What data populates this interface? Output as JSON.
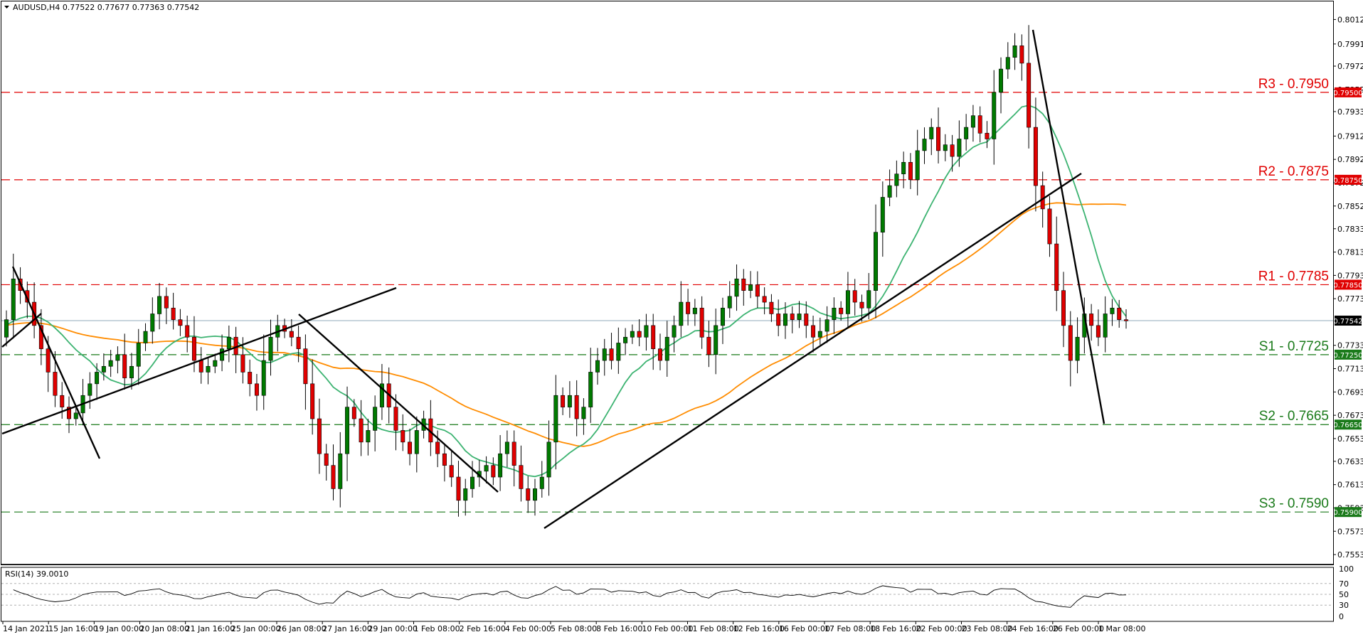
{
  "header": {
    "symbol_info": "AUDUSD,H4  0.77522 0.77677 0.77363 0.77542",
    "rsi_info": "RSI(14) 39.0010"
  },
  "chart_data": {
    "type": "candlestick",
    "symbol": "AUDUSD",
    "timeframe": "H4",
    "ohlc_last": {
      "open": 0.77522,
      "high": 0.77677,
      "low": 0.77363,
      "close": 0.77542
    },
    "ylim": [
      0.7545,
      0.8028
    ],
    "price_ticks": [
      "0.80125",
      "0.79915",
      "0.79725",
      "0.79525",
      "0.79335",
      "0.79125",
      "0.78925",
      "0.78725",
      "0.78525",
      "0.78330",
      "0.78130",
      "0.77930",
      "0.77730",
      "0.77330",
      "0.77130",
      "0.76930",
      "0.76730",
      "0.76530",
      "0.76335",
      "0.76135",
      "0.75935",
      "0.75735",
      "0.75535"
    ],
    "x_labels": [
      "14 Jan 2021",
      "15 Jan 16:00",
      "19 Jan 00:00",
      "20 Jan 08:00",
      "21 Jan 16:00",
      "25 Jan 00:00",
      "26 Jan 08:00",
      "27 Jan 16:00",
      "29 Jan 00:00",
      "1 Feb 08:00",
      "2 Feb 16:00",
      "4 Feb 00:00",
      "5 Feb 08:00",
      "8 Feb 16:00",
      "10 Feb 00:00",
      "11 Feb 08:00",
      "12 Feb 16:00",
      "16 Feb 00:00",
      "17 Feb 08:00",
      "18 Feb 16:00",
      "22 Feb 00:00",
      "23 Feb 08:00",
      "24 Feb 16:00",
      "26 Feb 00:00",
      "1 Mar 08:00"
    ],
    "current_price": "0.77542",
    "levels": [
      {
        "name": "R3",
        "label": "R3 - 0.7950",
        "value": 0.795,
        "badge": "0.79500",
        "color": "#e00000"
      },
      {
        "name": "R2",
        "label": "R2 - 0.7875",
        "value": 0.7875,
        "badge": "0.78750",
        "color": "#e00000"
      },
      {
        "name": "R1",
        "label": "R1 - 0.7785",
        "value": 0.7785,
        "badge": "0.77850",
        "color": "#e00000"
      },
      {
        "name": "S1",
        "label": "S1 - 0.7725",
        "value": 0.7725,
        "badge": "0.77250",
        "color": "#1a7a1a"
      },
      {
        "name": "S2",
        "label": "S2 - 0.7665",
        "value": 0.7665,
        "badge": "0.76650",
        "color": "#1a7a1a"
      },
      {
        "name": "S3",
        "label": "S3 - 0.7590",
        "value": 0.759,
        "badge": "0.75900",
        "color": "#1a7a1a"
      }
    ],
    "closes": [
      0.7755,
      0.779,
      0.778,
      0.777,
      0.775,
      0.773,
      0.771,
      0.769,
      0.768,
      0.767,
      0.7675,
      0.769,
      0.77,
      0.771,
      0.7715,
      0.772,
      0.7725,
      0.7705,
      0.7715,
      0.7735,
      0.7745,
      0.776,
      0.7775,
      0.7765,
      0.7755,
      0.775,
      0.774,
      0.772,
      0.771,
      0.7715,
      0.772,
      0.773,
      0.774,
      0.7725,
      0.771,
      0.77,
      0.769,
      0.772,
      0.774,
      0.775,
      0.7745,
      0.774,
      0.773,
      0.77,
      0.767,
      0.764,
      0.763,
      0.761,
      0.764,
      0.768,
      0.767,
      0.765,
      0.766,
      0.768,
      0.77,
      0.768,
      0.766,
      0.765,
      0.764,
      0.766,
      0.767,
      0.765,
      0.764,
      0.763,
      0.762,
      0.76,
      0.761,
      0.762,
      0.7625,
      0.763,
      0.762,
      0.764,
      0.765,
      0.763,
      0.761,
      0.76,
      0.761,
      0.762,
      0.765,
      0.769,
      0.768,
      0.769,
      0.767,
      0.768,
      0.771,
      0.772,
      0.773,
      0.772,
      0.7735,
      0.774,
      0.7745,
      0.774,
      0.775,
      0.773,
      0.772,
      0.774,
      0.775,
      0.777,
      0.776,
      0.7765,
      0.774,
      0.7725,
      0.775,
      0.7765,
      0.7775,
      0.779,
      0.778,
      0.7785,
      0.7775,
      0.777,
      0.776,
      0.775,
      0.776,
      0.7755,
      0.776,
      0.775,
      0.774,
      0.7745,
      0.7755,
      0.7765,
      0.776,
      0.778,
      0.777,
      0.7765,
      0.778,
      0.783,
      0.786,
      0.787,
      0.788,
      0.789,
      0.7875,
      0.79,
      0.791,
      0.792,
      0.79,
      0.7905,
      0.7895,
      0.791,
      0.792,
      0.793,
      0.7915,
      0.791,
      0.795,
      0.797,
      0.798,
      0.799,
      0.7975,
      0.792,
      0.787,
      0.785,
      0.782,
      0.778,
      0.775,
      0.772,
      0.774,
      0.776,
      0.775,
      0.774,
      0.776,
      0.7765,
      0.7755,
      0.7754
    ],
    "rsi": {
      "period": 14,
      "value": 39.001,
      "ylim": [
        0,
        100
      ],
      "ticks": [
        "100",
        "70",
        "50",
        "30",
        "0"
      ],
      "levels": [
        70,
        50,
        30
      ]
    },
    "moving_averages": [
      {
        "period": 50,
        "color": "#3cb371"
      },
      {
        "period": 200,
        "color": "#ff8c00"
      }
    ]
  }
}
